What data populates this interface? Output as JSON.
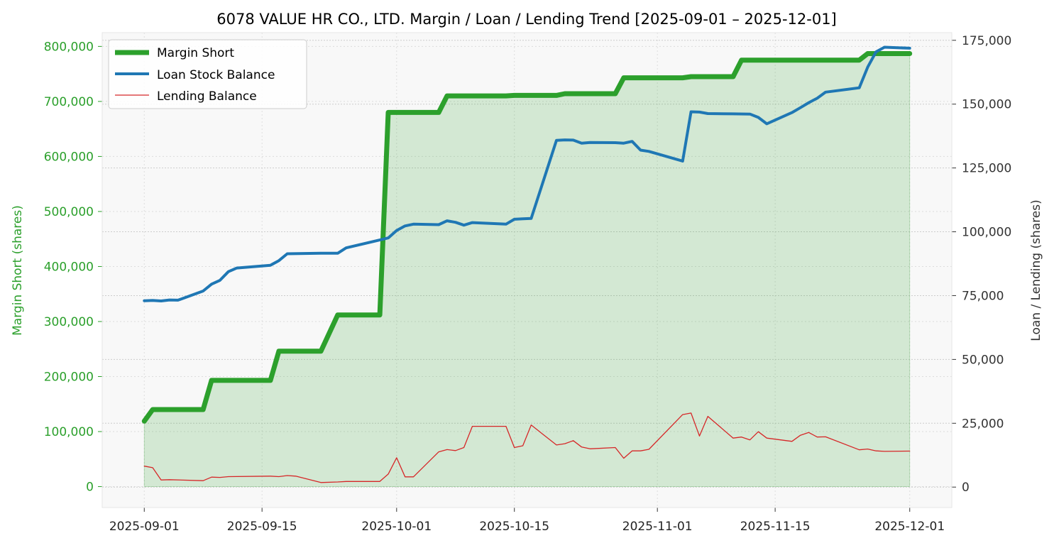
{
  "chart_data": {
    "type": "line",
    "title": "6078 VALUE HR CO., LTD. Margin / Loan / Lending Trend [2025-09-01 – 2025-12-01]",
    "xlabel": "",
    "ylabel_left": "Margin Short (shares)",
    "ylabel_right": "Loan / Lending (shares)",
    "ylim_left": [
      -38000,
      825000
    ],
    "ylim_right": [
      -8000,
      178000
    ],
    "x_range": [
      "2025-08-27",
      "2025-12-06"
    ],
    "x_ticks": [
      "2025-09-01",
      "2025-09-15",
      "2025-10-01",
      "2025-10-15",
      "2025-11-01",
      "2025-11-15",
      "2025-12-01"
    ],
    "y_ticks_left": [
      0,
      100000,
      200000,
      300000,
      400000,
      500000,
      600000,
      700000,
      800000
    ],
    "y_tick_labels_left": [
      "0",
      "100,000",
      "200,000",
      "300,000",
      "400,000",
      "500,000",
      "600,000",
      "700,000",
      "800,000"
    ],
    "y_ticks_right": [
      0,
      25000,
      50000,
      75000,
      100000,
      125000,
      150000,
      175000
    ],
    "y_tick_labels_right": [
      "0",
      "25,000",
      "50,000",
      "75,000",
      "100,000",
      "125,000",
      "150,000",
      "175,000"
    ],
    "grid": true,
    "legend_position": "top-left",
    "colors": {
      "margin_short": "#2ca02c",
      "margin_fill": "#2ca02c",
      "loan": "#1f77b4",
      "lending": "#d62728",
      "left_axis": "#2ca02c",
      "plot_bg": "#f8f8f8"
    },
    "series": [
      {
        "name": "Margin Short",
        "axis": "left",
        "values": [
          [
            "2025-09-01",
            119000
          ],
          [
            "2025-09-02",
            140000
          ],
          [
            "2025-09-08",
            140000
          ],
          [
            "2025-09-09",
            193000
          ],
          [
            "2025-09-16",
            193000
          ],
          [
            "2025-09-17",
            246000
          ],
          [
            "2025-09-22",
            246000
          ],
          [
            "2025-09-24",
            312000
          ],
          [
            "2025-09-29",
            312000
          ],
          [
            "2025-09-30",
            680000
          ],
          [
            "2025-10-06",
            680000
          ],
          [
            "2025-10-07",
            710000
          ],
          [
            "2025-10-14",
            710000
          ],
          [
            "2025-10-15",
            711000
          ],
          [
            "2025-10-20",
            711000
          ],
          [
            "2025-10-21",
            714000
          ],
          [
            "2025-10-27",
            714000
          ],
          [
            "2025-10-28",
            743000
          ],
          [
            "2025-11-04",
            743000
          ],
          [
            "2025-11-05",
            745000
          ],
          [
            "2025-11-10",
            745000
          ],
          [
            "2025-11-11",
            775000
          ],
          [
            "2025-11-25",
            775000
          ],
          [
            "2025-11-26",
            787000
          ],
          [
            "2025-12-01",
            787000
          ]
        ]
      },
      {
        "name": "Loan Stock Balance",
        "axis": "right",
        "values": [
          [
            "2025-09-01",
            73000
          ],
          [
            "2025-09-02",
            73100
          ],
          [
            "2025-09-03",
            72900
          ],
          [
            "2025-09-04",
            73300
          ],
          [
            "2025-09-05",
            73200
          ],
          [
            "2025-09-08",
            76800
          ],
          [
            "2025-09-09",
            79500
          ],
          [
            "2025-09-10",
            81000
          ],
          [
            "2025-09-11",
            84400
          ],
          [
            "2025-09-12",
            85800
          ],
          [
            "2025-09-16",
            86900
          ],
          [
            "2025-09-17",
            88700
          ],
          [
            "2025-09-18",
            91400
          ],
          [
            "2025-09-22",
            91600
          ],
          [
            "2025-09-24",
            91600
          ],
          [
            "2025-09-25",
            93700
          ],
          [
            "2025-09-29",
            96800
          ],
          [
            "2025-09-30",
            97600
          ],
          [
            "2025-10-01",
            100500
          ],
          [
            "2025-10-02",
            102300
          ],
          [
            "2025-10-03",
            103000
          ],
          [
            "2025-10-06",
            102800
          ],
          [
            "2025-10-07",
            104300
          ],
          [
            "2025-10-08",
            103700
          ],
          [
            "2025-10-09",
            102600
          ],
          [
            "2025-10-10",
            103600
          ],
          [
            "2025-10-14",
            103000
          ],
          [
            "2025-10-15",
            104900
          ],
          [
            "2025-10-16",
            105100
          ],
          [
            "2025-10-17",
            105200
          ],
          [
            "2025-10-20",
            135800
          ],
          [
            "2025-10-21",
            136000
          ],
          [
            "2025-10-22",
            135900
          ],
          [
            "2025-10-23",
            134700
          ],
          [
            "2025-10-24",
            135000
          ],
          [
            "2025-10-27",
            134900
          ],
          [
            "2025-10-28",
            134700
          ],
          [
            "2025-10-29",
            135400
          ],
          [
            "2025-10-30",
            132000
          ],
          [
            "2025-10-31",
            131500
          ],
          [
            "2025-11-04",
            127700
          ],
          [
            "2025-11-05",
            147000
          ],
          [
            "2025-11-06",
            146900
          ],
          [
            "2025-11-07",
            146300
          ],
          [
            "2025-11-10",
            146200
          ],
          [
            "2025-11-12",
            146100
          ],
          [
            "2025-11-13",
            144800
          ],
          [
            "2025-11-14",
            142300
          ],
          [
            "2025-11-17",
            146700
          ],
          [
            "2025-11-18",
            148600
          ],
          [
            "2025-11-19",
            150600
          ],
          [
            "2025-11-20",
            152300
          ],
          [
            "2025-11-21",
            154700
          ],
          [
            "2025-11-25",
            156400
          ],
          [
            "2025-11-26",
            164500
          ],
          [
            "2025-11-27",
            170500
          ],
          [
            "2025-11-28",
            172300
          ],
          [
            "2025-12-01",
            171900
          ]
        ]
      },
      {
        "name": "Lending Balance",
        "axis": "right",
        "values": [
          [
            "2025-09-01",
            8200
          ],
          [
            "2025-09-02",
            7600
          ],
          [
            "2025-09-03",
            2800
          ],
          [
            "2025-09-04",
            2900
          ],
          [
            "2025-09-08",
            2500
          ],
          [
            "2025-09-09",
            3900
          ],
          [
            "2025-09-10",
            3800
          ],
          [
            "2025-09-11",
            4100
          ],
          [
            "2025-09-16",
            4300
          ],
          [
            "2025-09-17",
            4100
          ],
          [
            "2025-09-18",
            4500
          ],
          [
            "2025-09-19",
            4300
          ],
          [
            "2025-09-22",
            1800
          ],
          [
            "2025-09-24",
            2000
          ],
          [
            "2025-09-25",
            2200
          ],
          [
            "2025-09-29",
            2200
          ],
          [
            "2025-09-30",
            5100
          ],
          [
            "2025-10-01",
            11500
          ],
          [
            "2025-10-02",
            4000
          ],
          [
            "2025-10-03",
            4000
          ],
          [
            "2025-10-06",
            13800
          ],
          [
            "2025-10-07",
            14700
          ],
          [
            "2025-10-08",
            14300
          ],
          [
            "2025-10-09",
            15500
          ],
          [
            "2025-10-10",
            23800
          ],
          [
            "2025-10-14",
            23800
          ],
          [
            "2025-10-15",
            15500
          ],
          [
            "2025-10-16",
            16200
          ],
          [
            "2025-10-17",
            24300
          ],
          [
            "2025-10-20",
            16500
          ],
          [
            "2025-10-21",
            17000
          ],
          [
            "2025-10-22",
            18200
          ],
          [
            "2025-10-23",
            15700
          ],
          [
            "2025-10-24",
            15000
          ],
          [
            "2025-10-27",
            15500
          ],
          [
            "2025-10-28",
            11300
          ],
          [
            "2025-10-29",
            14200
          ],
          [
            "2025-10-30",
            14200
          ],
          [
            "2025-10-31",
            14800
          ],
          [
            "2025-11-04",
            28400
          ],
          [
            "2025-11-05",
            29000
          ],
          [
            "2025-11-06",
            20000
          ],
          [
            "2025-11-07",
            27700
          ],
          [
            "2025-11-10",
            19200
          ],
          [
            "2025-11-11",
            19600
          ],
          [
            "2025-11-12",
            18500
          ],
          [
            "2025-11-13",
            21700
          ],
          [
            "2025-11-14",
            19200
          ],
          [
            "2025-11-17",
            17900
          ],
          [
            "2025-11-18",
            20300
          ],
          [
            "2025-11-19",
            21400
          ],
          [
            "2025-11-20",
            19600
          ],
          [
            "2025-11-21",
            19700
          ],
          [
            "2025-11-25",
            14600
          ],
          [
            "2025-11-26",
            14900
          ],
          [
            "2025-11-27",
            14200
          ],
          [
            "2025-11-28",
            14000
          ],
          [
            "2025-12-01",
            14100
          ]
        ]
      }
    ]
  }
}
